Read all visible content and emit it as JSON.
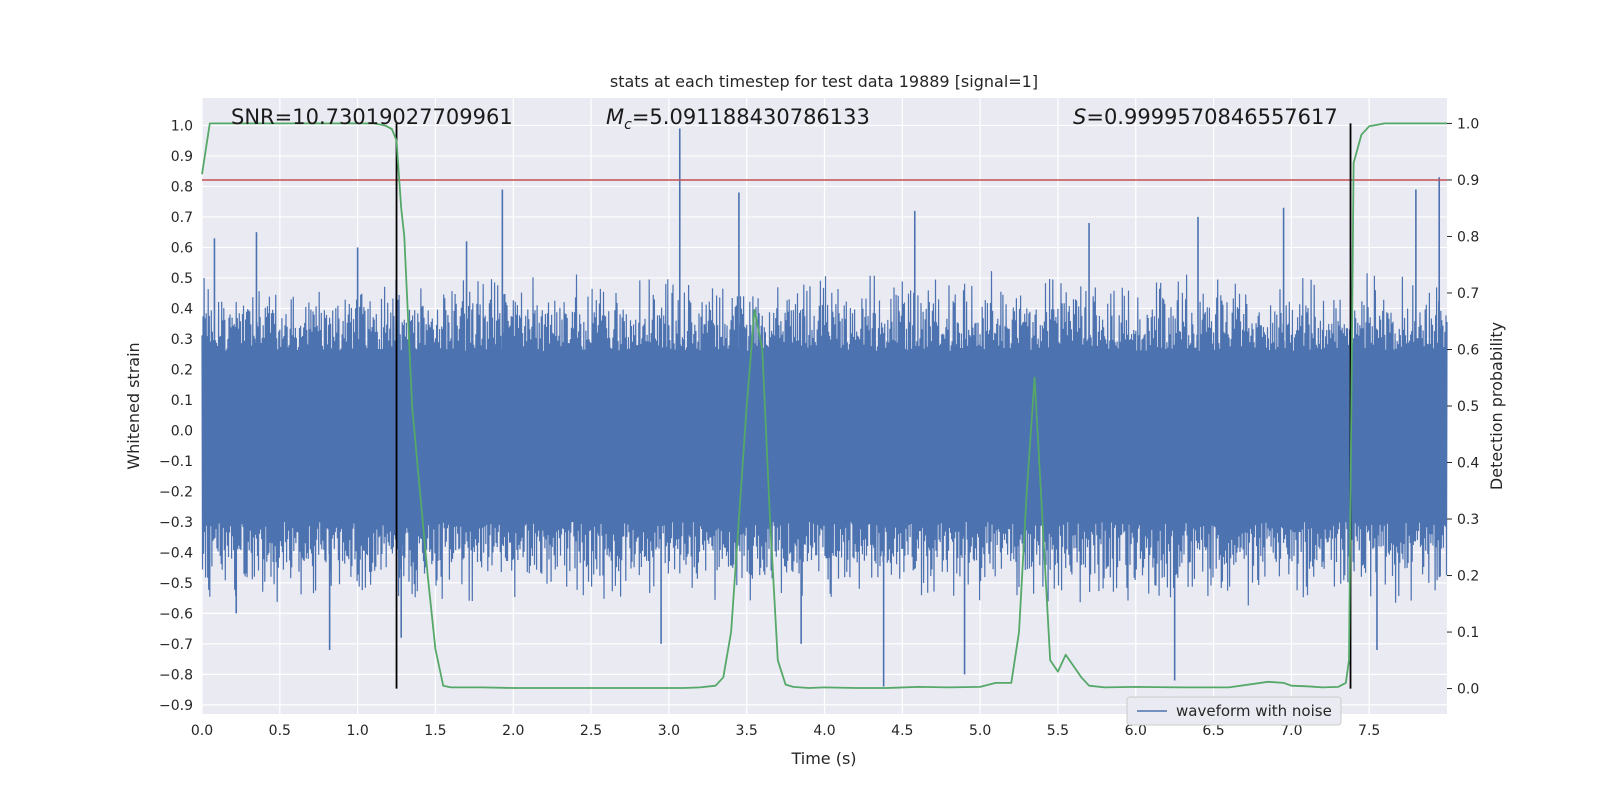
{
  "chart_data": {
    "type": "line",
    "title": "stats at each timestep for test data 19889 [signal=1]",
    "xlabel": "Time (s)",
    "ylabel": "Whitened strain",
    "y2label": "Detection probability",
    "xlim": [
      0,
      8
    ],
    "ylim": [
      -0.93,
      1.09
    ],
    "y2lim": [
      -0.045,
      1.045
    ],
    "grid": true,
    "x_ticks": [
      "0.0",
      "0.5",
      "1.0",
      "1.5",
      "2.0",
      "2.5",
      "3.0",
      "3.5",
      "4.0",
      "4.5",
      "5.0",
      "5.5",
      "6.0",
      "6.5",
      "7.0",
      "7.5"
    ],
    "y_ticks": [
      "1.0",
      "0.9",
      "0.8",
      "0.7",
      "0.6",
      "0.5",
      "0.4",
      "0.3",
      "0.2",
      "0.1",
      "0.0",
      "-0.1",
      "-0.2",
      "-0.3",
      "-0.4",
      "-0.5",
      "-0.6",
      "-0.7",
      "-0.8",
      "-0.9"
    ],
    "y2_ticks": [
      "1.0",
      "0.9",
      "0.8",
      "0.7",
      "0.6",
      "0.5",
      "0.4",
      "0.3",
      "0.2",
      "0.1",
      "0.0"
    ],
    "annotations": {
      "snr": "SNR=10.73019027709961",
      "mc_symbol": "M",
      "mc_sub": "c",
      "mc_value": "=5.091188430786133",
      "s_symbol": "S",
      "s_value": "=0.9999570846557617"
    },
    "legend": {
      "label": "waveform with noise",
      "location": "lower right"
    },
    "threshold_probability": 0.9,
    "event_markers_x": [
      1.25,
      7.38
    ],
    "waveform": {
      "name": "waveform with noise",
      "color": "#4c72b0",
      "x_range": [
        0,
        8
      ],
      "core_band": [
        -0.3,
        0.26
      ],
      "noise_upper_typ": 0.45,
      "noise_lower_typ": -0.5,
      "spikes": [
        {
          "x": 0.08,
          "y": 0.63
        },
        {
          "x": 0.22,
          "y": -0.6
        },
        {
          "x": 0.35,
          "y": 0.65
        },
        {
          "x": 0.82,
          "y": -0.72
        },
        {
          "x": 1.0,
          "y": 0.6
        },
        {
          "x": 1.28,
          "y": -0.68
        },
        {
          "x": 1.7,
          "y": 0.62
        },
        {
          "x": 1.93,
          "y": 0.79
        },
        {
          "x": 2.95,
          "y": -0.7
        },
        {
          "x": 3.07,
          "y": 0.99
        },
        {
          "x": 3.45,
          "y": 0.78
        },
        {
          "x": 3.85,
          "y": -0.7
        },
        {
          "x": 4.38,
          "y": -0.84
        },
        {
          "x": 4.58,
          "y": 0.72
        },
        {
          "x": 4.9,
          "y": -0.8
        },
        {
          "x": 5.7,
          "y": 0.68
        },
        {
          "x": 6.25,
          "y": -0.82
        },
        {
          "x": 6.4,
          "y": 0.7
        },
        {
          "x": 6.95,
          "y": 0.73
        },
        {
          "x": 7.55,
          "y": -0.72
        },
        {
          "x": 7.8,
          "y": 0.79
        },
        {
          "x": 7.95,
          "y": 0.83
        }
      ]
    },
    "probability": {
      "name": "detection probability",
      "color": "#55a868",
      "x": [
        0.0,
        0.05,
        0.2,
        0.4,
        0.6,
        0.8,
        1.0,
        1.1,
        1.15,
        1.18,
        1.22,
        1.25,
        1.28,
        1.3,
        1.35,
        1.4,
        1.45,
        1.5,
        1.55,
        1.6,
        1.7,
        1.8,
        2.0,
        2.2,
        2.4,
        2.6,
        2.8,
        3.0,
        3.1,
        3.2,
        3.3,
        3.35,
        3.4,
        3.45,
        3.5,
        3.55,
        3.6,
        3.65,
        3.7,
        3.75,
        3.8,
        3.9,
        4.0,
        4.2,
        4.4,
        4.6,
        4.8,
        5.0,
        5.1,
        5.2,
        5.25,
        5.3,
        5.35,
        5.4,
        5.45,
        5.5,
        5.55,
        5.6,
        5.65,
        5.7,
        5.8,
        6.0,
        6.3,
        6.6,
        6.85,
        6.95,
        7.0,
        7.1,
        7.2,
        7.3,
        7.35,
        7.37,
        7.4,
        7.45,
        7.5,
        7.6,
        7.7,
        7.8,
        8.0
      ],
      "y": [
        0.91,
        1.0,
        1.0,
        1.0,
        1.0,
        1.0,
        1.0,
        1.0,
        0.998,
        0.996,
        0.99,
        0.97,
        0.85,
        0.8,
        0.5,
        0.35,
        0.2,
        0.07,
        0.005,
        0.002,
        0.002,
        0.002,
        0.001,
        0.001,
        0.001,
        0.001,
        0.001,
        0.001,
        0.001,
        0.002,
        0.005,
        0.02,
        0.1,
        0.3,
        0.5,
        0.67,
        0.6,
        0.3,
        0.05,
        0.007,
        0.003,
        0.001,
        0.002,
        0.001,
        0.001,
        0.003,
        0.002,
        0.003,
        0.01,
        0.01,
        0.1,
        0.35,
        0.55,
        0.3,
        0.05,
        0.03,
        0.06,
        0.04,
        0.02,
        0.005,
        0.002,
        0.003,
        0.002,
        0.002,
        0.012,
        0.01,
        0.005,
        0.004,
        0.002,
        0.003,
        0.01,
        0.05,
        0.93,
        0.98,
        0.995,
        1.0,
        1.0,
        1.0,
        1.0
      ]
    },
    "threshold_color": "#c44e52",
    "marker_color": "#000000"
  }
}
